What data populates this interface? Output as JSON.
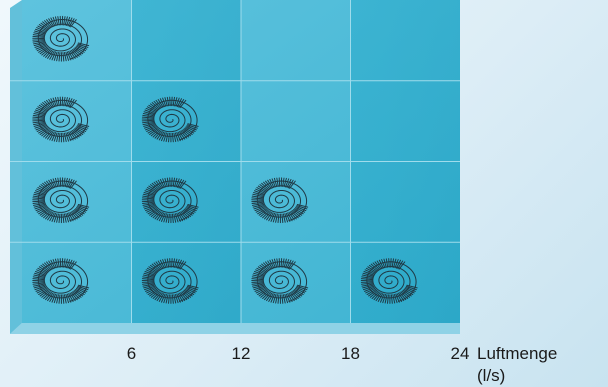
{
  "chart_data": {
    "type": "table",
    "x_ticks": [
      "6",
      "12",
      "18",
      "24"
    ],
    "x_values": [
      6,
      12,
      18,
      24
    ],
    "xlabel": "Luftmenge",
    "xunit": "(l/s)",
    "rows": 4,
    "columns": 4,
    "grid": true,
    "cells": [
      [
        1,
        0,
        0,
        0
      ],
      [
        1,
        1,
        0,
        0
      ],
      [
        1,
        1,
        1,
        0
      ],
      [
        1,
        1,
        1,
        1
      ]
    ],
    "colors": {
      "panel_light": "#6ccbe2",
      "panel_dark": "#2aaccc",
      "grid": "#9fdcec",
      "floor": "#8fd2e6",
      "spiral": "#1f3a46"
    }
  }
}
